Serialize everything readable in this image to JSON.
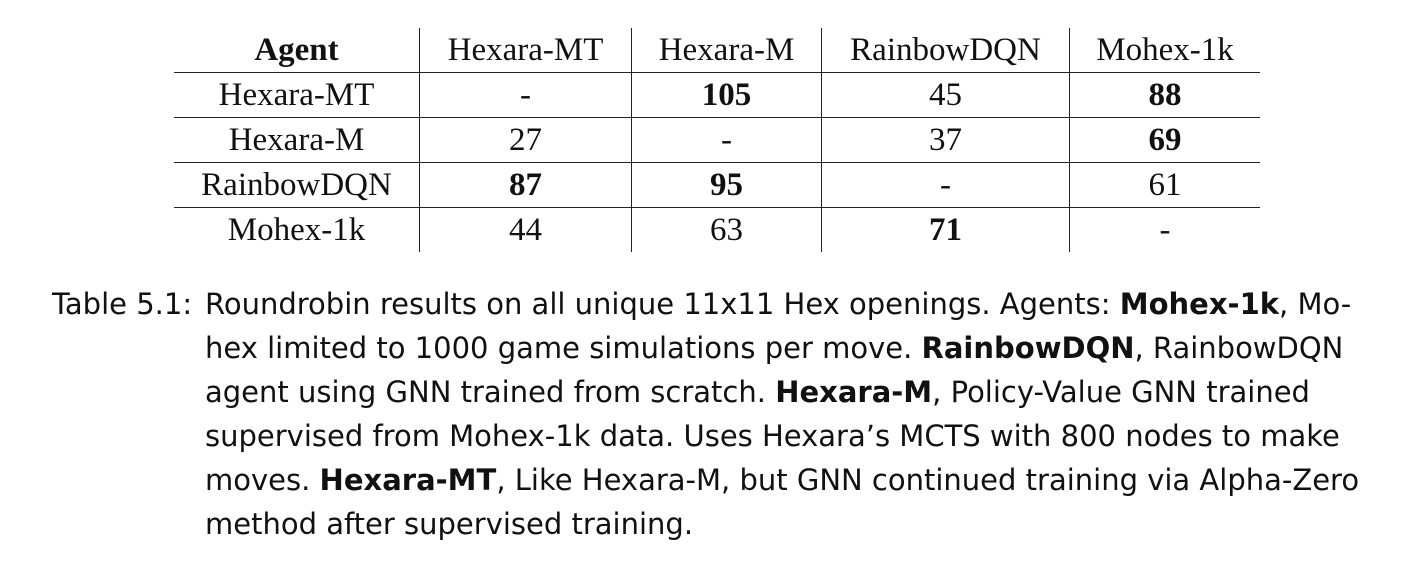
{
  "table": {
    "corner_header": "Agent",
    "column_headers": [
      "Hexara-MT",
      "Hexara-M",
      "RainbowDQN",
      "Mohex-1k"
    ],
    "rows": [
      {
        "agent": "Hexara-MT",
        "cells": [
          {
            "value": "-",
            "bold": false
          },
          {
            "value": "105",
            "bold": true
          },
          {
            "value": "45",
            "bold": false
          },
          {
            "value": "88",
            "bold": true
          }
        ]
      },
      {
        "agent": "Hexara-M",
        "cells": [
          {
            "value": "27",
            "bold": false
          },
          {
            "value": "-",
            "bold": false
          },
          {
            "value": "37",
            "bold": false
          },
          {
            "value": "69",
            "bold": true
          }
        ]
      },
      {
        "agent": "RainbowDQN",
        "cells": [
          {
            "value": "87",
            "bold": true
          },
          {
            "value": "95",
            "bold": true
          },
          {
            "value": "-",
            "bold": false
          },
          {
            "value": "61",
            "bold": false
          }
        ]
      },
      {
        "agent": "Mohex-1k",
        "cells": [
          {
            "value": "44",
            "bold": false
          },
          {
            "value": "63",
            "bold": false
          },
          {
            "value": "71",
            "bold": true
          },
          {
            "value": "-",
            "bold": false
          }
        ]
      }
    ]
  },
  "caption": {
    "label": "Table 5.1:",
    "lines": [
      [
        {
          "text": "Roundrobin results on all unique 11x11 Hex openings. Agents: ",
          "bold": false
        },
        {
          "text": "Mohex-1k",
          "bold": true
        },
        {
          "text": ", Mo-",
          "bold": false
        }
      ],
      [
        {
          "text": "hex limited to 1000 game simulations per move. ",
          "bold": false
        },
        {
          "text": "RainbowDQN",
          "bold": true
        },
        {
          "text": ", RainbowDQN",
          "bold": false
        }
      ],
      [
        {
          "text": "agent using GNN trained from scratch. ",
          "bold": false
        },
        {
          "text": "Hexara-M",
          "bold": true
        },
        {
          "text": ", Policy-Value GNN trained",
          "bold": false
        }
      ],
      [
        {
          "text": "supervised from Mohex-1k data. Uses Hexara’s MCTS with 800 nodes to make",
          "bold": false
        }
      ],
      [
        {
          "text": "moves. ",
          "bold": false
        },
        {
          "text": "Hexara-MT",
          "bold": true
        },
        {
          "text": ", Like Hexara-M, but GNN continued training via Alpha-Zero",
          "bold": false
        }
      ],
      [
        {
          "text": "method after supervised training.",
          "bold": false
        }
      ]
    ]
  }
}
